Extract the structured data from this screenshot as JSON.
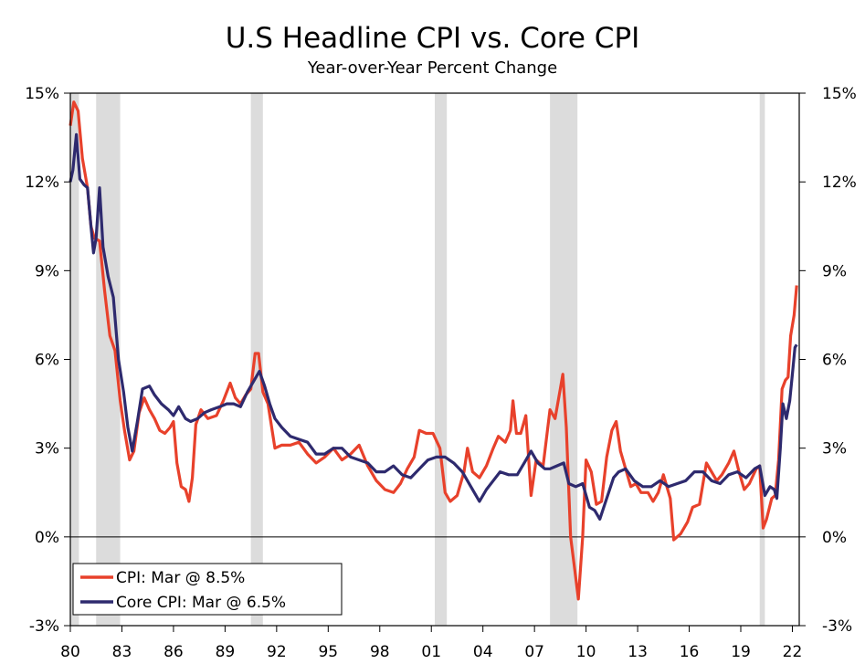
{
  "chart_data": {
    "type": "line",
    "title": "U.S Headline CPI vs. Core CPI",
    "subtitle": "Year-over-Year Percent Change",
    "xlabel": "",
    "ylabel": "",
    "ylim": [
      -3,
      15
    ],
    "xlim": [
      1980.0,
      2022.4
    ],
    "y_ticks": [
      15,
      12,
      9,
      6,
      3,
      0,
      -3
    ],
    "y_tick_labels": [
      "15%",
      "12%",
      "9%",
      "6%",
      "3%",
      "0%",
      "-3%"
    ],
    "x_ticks": [
      1980,
      1983,
      1986,
      1989,
      1992,
      1995,
      1998,
      2001,
      2004,
      2007,
      2010,
      2013,
      2016,
      2019,
      2022
    ],
    "x_tick_labels": [
      "80",
      "83",
      "86",
      "89",
      "92",
      "95",
      "98",
      "01",
      "04",
      "07",
      "10",
      "13",
      "16",
      "19",
      "22"
    ],
    "recessions": [
      [
        1980.0,
        1980.5
      ],
      [
        1981.5,
        1982.9
      ],
      [
        1990.5,
        1991.2
      ],
      [
        2001.2,
        2001.9
      ],
      [
        2007.9,
        2009.5
      ],
      [
        2020.1,
        2020.4
      ]
    ],
    "legend_position": "bottom-left",
    "series": [
      {
        "name": "CPI",
        "legend": "CPI: Mar @ 8.5%",
        "color": "#e8412b",
        "points": [
          [
            1980.0,
            13.9
          ],
          [
            1980.2,
            14.7
          ],
          [
            1980.45,
            14.4
          ],
          [
            1980.7,
            12.8
          ],
          [
            1981.0,
            11.8
          ],
          [
            1981.2,
            10.5
          ],
          [
            1981.4,
            10.1
          ],
          [
            1981.7,
            10.0
          ],
          [
            1982.0,
            8.3
          ],
          [
            1982.3,
            6.8
          ],
          [
            1982.6,
            6.3
          ],
          [
            1982.9,
            4.6
          ],
          [
            1983.15,
            3.6
          ],
          [
            1983.45,
            2.6
          ],
          [
            1983.7,
            2.9
          ],
          [
            1984.0,
            4.2
          ],
          [
            1984.3,
            4.7
          ],
          [
            1984.6,
            4.3
          ],
          [
            1984.9,
            4.0
          ],
          [
            1985.2,
            3.6
          ],
          [
            1985.5,
            3.5
          ],
          [
            1985.8,
            3.7
          ],
          [
            1986.0,
            3.9
          ],
          [
            1986.2,
            2.5
          ],
          [
            1986.45,
            1.7
          ],
          [
            1986.7,
            1.6
          ],
          [
            1986.9,
            1.2
          ],
          [
            1987.1,
            2.0
          ],
          [
            1987.3,
            3.8
          ],
          [
            1987.6,
            4.3
          ],
          [
            1988.0,
            4.0
          ],
          [
            1988.5,
            4.1
          ],
          [
            1988.9,
            4.6
          ],
          [
            1989.3,
            5.2
          ],
          [
            1989.6,
            4.7
          ],
          [
            1989.9,
            4.5
          ],
          [
            1990.2,
            4.8
          ],
          [
            1990.5,
            5.0
          ],
          [
            1990.75,
            6.2
          ],
          [
            1990.95,
            6.2
          ],
          [
            1991.2,
            4.9
          ],
          [
            1991.5,
            4.5
          ],
          [
            1991.9,
            3.0
          ],
          [
            1992.3,
            3.1
          ],
          [
            1992.8,
            3.1
          ],
          [
            1993.3,
            3.2
          ],
          [
            1993.8,
            2.8
          ],
          [
            1994.3,
            2.5
          ],
          [
            1994.8,
            2.7
          ],
          [
            1995.3,
            3.0
          ],
          [
            1995.8,
            2.6
          ],
          [
            1996.3,
            2.8
          ],
          [
            1996.8,
            3.1
          ],
          [
            1997.3,
            2.4
          ],
          [
            1997.8,
            1.9
          ],
          [
            1998.3,
            1.6
          ],
          [
            1998.8,
            1.5
          ],
          [
            1999.2,
            1.8
          ],
          [
            1999.6,
            2.3
          ],
          [
            2000.0,
            2.7
          ],
          [
            2000.3,
            3.6
          ],
          [
            2000.7,
            3.5
          ],
          [
            2001.1,
            3.5
          ],
          [
            2001.5,
            3.0
          ],
          [
            2001.8,
            1.5
          ],
          [
            2002.1,
            1.2
          ],
          [
            2002.5,
            1.4
          ],
          [
            2002.9,
            2.2
          ],
          [
            2003.1,
            3.0
          ],
          [
            2003.4,
            2.2
          ],
          [
            2003.8,
            2.0
          ],
          [
            2004.2,
            2.4
          ],
          [
            2004.6,
            3.0
          ],
          [
            2004.9,
            3.4
          ],
          [
            2005.3,
            3.2
          ],
          [
            2005.6,
            3.6
          ],
          [
            2005.75,
            4.6
          ],
          [
            2005.95,
            3.5
          ],
          [
            2006.2,
            3.5
          ],
          [
            2006.5,
            4.1
          ],
          [
            2006.8,
            1.4
          ],
          [
            2007.1,
            2.6
          ],
          [
            2007.5,
            2.4
          ],
          [
            2007.9,
            4.3
          ],
          [
            2008.2,
            4.0
          ],
          [
            2008.5,
            5.0
          ],
          [
            2008.65,
            5.5
          ],
          [
            2008.85,
            3.7
          ],
          [
            2009.1,
            0.0
          ],
          [
            2009.3,
            -0.9
          ],
          [
            2009.55,
            -2.1
          ],
          [
            2009.8,
            0.0
          ],
          [
            2010.0,
            2.6
          ],
          [
            2010.3,
            2.2
          ],
          [
            2010.6,
            1.1
          ],
          [
            2010.9,
            1.2
          ],
          [
            2011.2,
            2.7
          ],
          [
            2011.5,
            3.6
          ],
          [
            2011.75,
            3.9
          ],
          [
            2012.0,
            2.9
          ],
          [
            2012.3,
            2.3
          ],
          [
            2012.6,
            1.7
          ],
          [
            2012.9,
            1.8
          ],
          [
            2013.2,
            1.5
          ],
          [
            2013.6,
            1.5
          ],
          [
            2013.9,
            1.2
          ],
          [
            2014.2,
            1.5
          ],
          [
            2014.5,
            2.1
          ],
          [
            2014.9,
            1.3
          ],
          [
            2015.1,
            -0.1
          ],
          [
            2015.5,
            0.1
          ],
          [
            2015.9,
            0.5
          ],
          [
            2016.2,
            1.0
          ],
          [
            2016.6,
            1.1
          ],
          [
            2017.0,
            2.5
          ],
          [
            2017.3,
            2.2
          ],
          [
            2017.6,
            1.9
          ],
          [
            2017.9,
            2.1
          ],
          [
            2018.3,
            2.5
          ],
          [
            2018.6,
            2.9
          ],
          [
            2018.9,
            2.2
          ],
          [
            2019.2,
            1.6
          ],
          [
            2019.5,
            1.8
          ],
          [
            2019.9,
            2.3
          ],
          [
            2020.1,
            2.4
          ],
          [
            2020.3,
            0.3
          ],
          [
            2020.5,
            0.6
          ],
          [
            2020.8,
            1.3
          ],
          [
            2021.0,
            1.4
          ],
          [
            2021.2,
            2.6
          ],
          [
            2021.4,
            5.0
          ],
          [
            2021.6,
            5.3
          ],
          [
            2021.75,
            5.4
          ],
          [
            2021.9,
            6.8
          ],
          [
            2022.1,
            7.5
          ],
          [
            2022.25,
            8.5
          ]
        ]
      },
      {
        "name": "Core CPI",
        "legend": "Core CPI: Mar @ 6.5%",
        "color": "#2e2a6e",
        "points": [
          [
            1980.0,
            12.0
          ],
          [
            1980.15,
            12.4
          ],
          [
            1980.35,
            13.6
          ],
          [
            1980.55,
            12.1
          ],
          [
            1980.8,
            11.9
          ],
          [
            1981.0,
            11.8
          ],
          [
            1981.2,
            10.5
          ],
          [
            1981.35,
            9.6
          ],
          [
            1981.5,
            10.1
          ],
          [
            1981.7,
            11.8
          ],
          [
            1981.9,
            9.8
          ],
          [
            1982.2,
            8.8
          ],
          [
            1982.5,
            8.1
          ],
          [
            1982.8,
            6.0
          ],
          [
            1983.1,
            4.9
          ],
          [
            1983.35,
            3.7
          ],
          [
            1983.6,
            2.9
          ],
          [
            1983.9,
            3.9
          ],
          [
            1984.2,
            5.0
          ],
          [
            1984.6,
            5.1
          ],
          [
            1984.9,
            4.8
          ],
          [
            1985.3,
            4.5
          ],
          [
            1985.7,
            4.3
          ],
          [
            1986.0,
            4.1
          ],
          [
            1986.3,
            4.4
          ],
          [
            1986.7,
            4.0
          ],
          [
            1987.0,
            3.9
          ],
          [
            1987.4,
            4.0
          ],
          [
            1987.8,
            4.2
          ],
          [
            1988.2,
            4.3
          ],
          [
            1988.7,
            4.4
          ],
          [
            1989.1,
            4.5
          ],
          [
            1989.5,
            4.5
          ],
          [
            1989.9,
            4.4
          ],
          [
            1990.3,
            4.9
          ],
          [
            1990.7,
            5.3
          ],
          [
            1991.0,
            5.6
          ],
          [
            1991.3,
            5.1
          ],
          [
            1991.6,
            4.5
          ],
          [
            1991.9,
            4.0
          ],
          [
            1992.3,
            3.7
          ],
          [
            1992.8,
            3.4
          ],
          [
            1993.3,
            3.3
          ],
          [
            1993.8,
            3.2
          ],
          [
            1994.3,
            2.8
          ],
          [
            1994.8,
            2.8
          ],
          [
            1995.3,
            3.0
          ],
          [
            1995.8,
            3.0
          ],
          [
            1996.3,
            2.7
          ],
          [
            1996.8,
            2.6
          ],
          [
            1997.3,
            2.5
          ],
          [
            1997.8,
            2.2
          ],
          [
            1998.3,
            2.2
          ],
          [
            1998.8,
            2.4
          ],
          [
            1999.3,
            2.1
          ],
          [
            1999.8,
            2.0
          ],
          [
            2000.3,
            2.3
          ],
          [
            2000.8,
            2.6
          ],
          [
            2001.3,
            2.7
          ],
          [
            2001.8,
            2.7
          ],
          [
            2002.3,
            2.5
          ],
          [
            2002.8,
            2.2
          ],
          [
            2003.3,
            1.7
          ],
          [
            2003.8,
            1.2
          ],
          [
            2004.2,
            1.6
          ],
          [
            2004.6,
            1.9
          ],
          [
            2005.0,
            2.2
          ],
          [
            2005.5,
            2.1
          ],
          [
            2006.0,
            2.1
          ],
          [
            2006.4,
            2.5
          ],
          [
            2006.8,
            2.9
          ],
          [
            2007.2,
            2.5
          ],
          [
            2007.6,
            2.3
          ],
          [
            2007.9,
            2.3
          ],
          [
            2008.3,
            2.4
          ],
          [
            2008.7,
            2.5
          ],
          [
            2009.0,
            1.8
          ],
          [
            2009.4,
            1.7
          ],
          [
            2009.8,
            1.8
          ],
          [
            2010.2,
            1.0
          ],
          [
            2010.5,
            0.9
          ],
          [
            2010.8,
            0.6
          ],
          [
            2011.2,
            1.3
          ],
          [
            2011.6,
            2.0
          ],
          [
            2011.9,
            2.2
          ],
          [
            2012.3,
            2.3
          ],
          [
            2012.8,
            1.9
          ],
          [
            2013.3,
            1.7
          ],
          [
            2013.8,
            1.7
          ],
          [
            2014.3,
            1.9
          ],
          [
            2014.8,
            1.7
          ],
          [
            2015.3,
            1.8
          ],
          [
            2015.8,
            1.9
          ],
          [
            2016.3,
            2.2
          ],
          [
            2016.8,
            2.2
          ],
          [
            2017.3,
            1.9
          ],
          [
            2017.8,
            1.8
          ],
          [
            2018.3,
            2.1
          ],
          [
            2018.8,
            2.2
          ],
          [
            2019.3,
            2.0
          ],
          [
            2019.8,
            2.3
          ],
          [
            2020.1,
            2.4
          ],
          [
            2020.4,
            1.4
          ],
          [
            2020.7,
            1.7
          ],
          [
            2020.95,
            1.6
          ],
          [
            2021.1,
            1.3
          ],
          [
            2021.3,
            3.0
          ],
          [
            2021.45,
            4.5
          ],
          [
            2021.65,
            4.0
          ],
          [
            2021.85,
            4.6
          ],
          [
            2022.0,
            5.5
          ],
          [
            2022.15,
            6.4
          ],
          [
            2022.25,
            6.5
          ]
        ]
      }
    ]
  }
}
